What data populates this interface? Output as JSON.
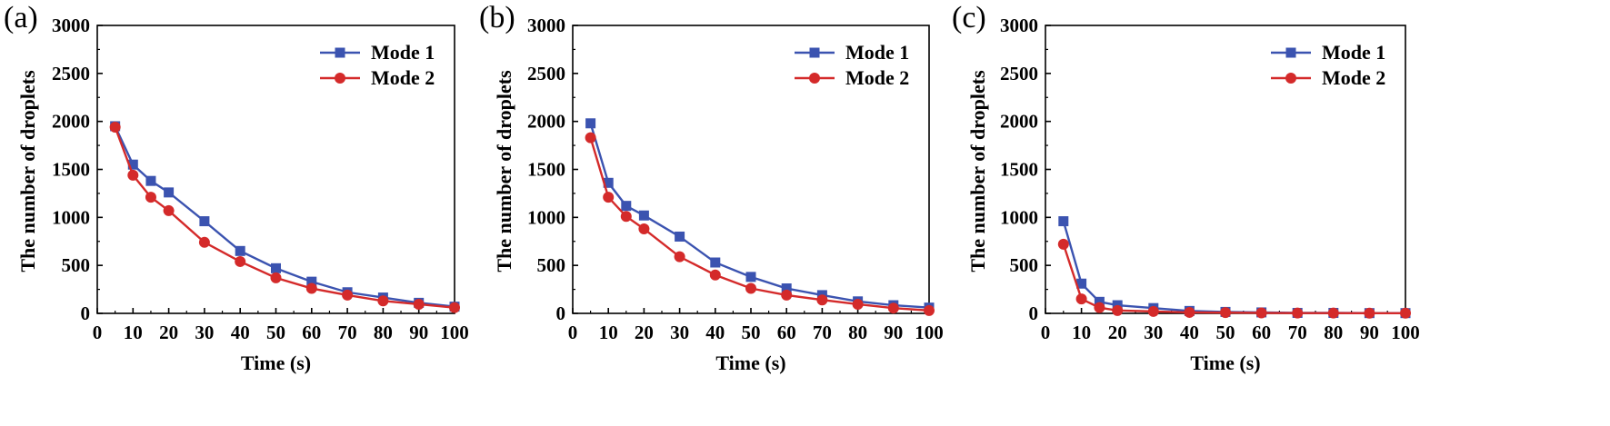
{
  "chart_data": [
    {
      "type": "line",
      "panel_label": "(a)",
      "title": "",
      "xlabel": "Time (s)",
      "ylabel": "The number of droplets",
      "xlim": [
        0,
        100
      ],
      "ylim": [
        0,
        3000
      ],
      "xticks": [
        0,
        10,
        20,
        30,
        40,
        50,
        60,
        70,
        80,
        90,
        100
      ],
      "yticks": [
        0,
        500,
        1000,
        1500,
        2000,
        2500,
        3000
      ],
      "x": [
        5,
        10,
        15,
        20,
        30,
        40,
        50,
        60,
        70,
        80,
        90,
        100
      ],
      "legend_position": "top-right",
      "series": [
        {
          "name": "Mode 1",
          "color": "#3b53b0",
          "marker": "square",
          "values": [
            1950,
            1550,
            1380,
            1260,
            960,
            650,
            470,
            330,
            220,
            165,
            110,
            70
          ]
        },
        {
          "name": "Mode 2",
          "color": "#d42a2a",
          "marker": "circle",
          "values": [
            1940,
            1440,
            1210,
            1070,
            740,
            540,
            370,
            260,
            190,
            130,
            95,
            60
          ]
        }
      ]
    },
    {
      "type": "line",
      "panel_label": "(b)",
      "title": "",
      "xlabel": "Time (s)",
      "ylabel": "The number of droplets",
      "xlim": [
        0,
        100
      ],
      "ylim": [
        0,
        3000
      ],
      "xticks": [
        0,
        10,
        20,
        30,
        40,
        50,
        60,
        70,
        80,
        90,
        100
      ],
      "yticks": [
        0,
        500,
        1000,
        1500,
        2000,
        2500,
        3000
      ],
      "x": [
        5,
        10,
        15,
        20,
        30,
        40,
        50,
        60,
        70,
        80,
        90,
        100
      ],
      "legend_position": "top-right",
      "series": [
        {
          "name": "Mode 1",
          "color": "#3b53b0",
          "marker": "square",
          "values": [
            1980,
            1360,
            1120,
            1020,
            800,
            530,
            380,
            260,
            190,
            125,
            85,
            60
          ]
        },
        {
          "name": "Mode 2",
          "color": "#d42a2a",
          "marker": "circle",
          "values": [
            1830,
            1210,
            1010,
            880,
            590,
            400,
            260,
            190,
            140,
            95,
            55,
            30
          ]
        }
      ]
    },
    {
      "type": "line",
      "panel_label": "(c)",
      "title": "",
      "xlabel": "Time (s)",
      "ylabel": "The number of droplets",
      "xlim": [
        0,
        100
      ],
      "ylim": [
        0,
        3000
      ],
      "xticks": [
        0,
        10,
        20,
        30,
        40,
        50,
        60,
        70,
        80,
        90,
        100
      ],
      "yticks": [
        0,
        500,
        1000,
        1500,
        2000,
        2500,
        3000
      ],
      "x": [
        5,
        10,
        15,
        20,
        30,
        40,
        50,
        60,
        70,
        80,
        90,
        100
      ],
      "legend_position": "top-right",
      "series": [
        {
          "name": "Mode 1",
          "color": "#3b53b0",
          "marker": "square",
          "values": [
            960,
            310,
            120,
            85,
            55,
            25,
            15,
            10,
            5,
            5,
            3,
            3
          ]
        },
        {
          "name": "Mode 2",
          "color": "#d42a2a",
          "marker": "circle",
          "values": [
            720,
            150,
            60,
            30,
            20,
            10,
            8,
            5,
            3,
            3,
            2,
            2
          ]
        }
      ]
    }
  ]
}
